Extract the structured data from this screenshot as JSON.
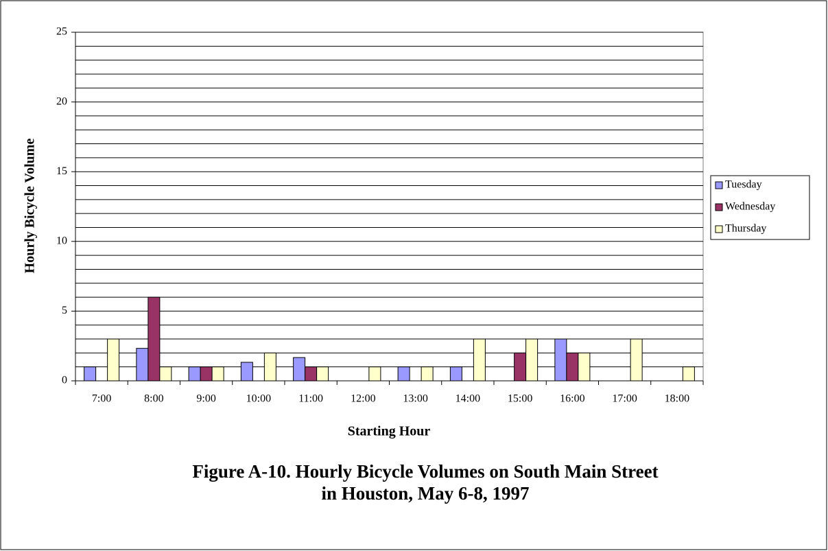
{
  "chart_data": {
    "type": "bar",
    "title": [
      "Figure A-10.  Hourly Bicycle Volumes on South Main Street",
      "in Houston, May 6-8, 1997"
    ],
    "x_label": "Starting Hour",
    "y_label": "Hourly Bicycle Volume",
    "categories": [
      "7:00",
      "8:00",
      "9:00",
      "10:00",
      "11:00",
      "12:00",
      "13:00",
      "14:00",
      "15:00",
      "16:00",
      "17:00",
      "18:00"
    ],
    "series": [
      {
        "name": "Tuesday",
        "color": "#9999ff",
        "values": [
          1,
          2.33,
          1,
          1.33,
          1.67,
          0,
          1,
          1,
          0,
          3,
          0,
          0
        ]
      },
      {
        "name": "Wednesday",
        "color": "#993366",
        "values": [
          0,
          6,
          1,
          0,
          1,
          0,
          0,
          0,
          2,
          2,
          0,
          0
        ]
      },
      {
        "name": "Thursday",
        "color": "#ffffcc",
        "values": [
          3,
          1,
          1,
          2,
          1,
          1,
          1,
          3,
          3,
          2,
          3,
          1
        ]
      }
    ],
    "ylim": [
      0,
      25
    ],
    "yticks": [
      0,
      5,
      10,
      15,
      20,
      25
    ],
    "grid": true,
    "minor_grid_step": 1,
    "legend": "right"
  }
}
